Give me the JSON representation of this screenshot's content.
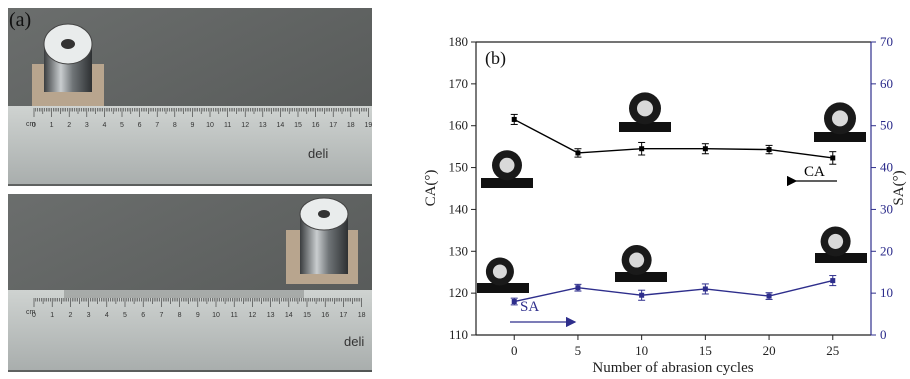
{
  "panel_a_label": "(a)",
  "ruler_brand": "deli",
  "ruler_unit": "cm",
  "ruler_top_numbers": [
    "0",
    "1",
    "2",
    "3",
    "4",
    "5",
    "6",
    "7",
    "8",
    "9",
    "10",
    "11",
    "12",
    "13",
    "14",
    "15",
    "16",
    "17",
    "18",
    "19"
  ],
  "ruler_bottom_numbers": [
    "0",
    "1",
    "2",
    "3",
    "4",
    "5",
    "6",
    "7",
    "8",
    "9",
    "10",
    "11",
    "12",
    "13",
    "14",
    "15",
    "16",
    "17",
    "18"
  ],
  "colors": {
    "ca_line": "#000000",
    "sa_line": "#2e2e8c",
    "background_photo": "#5c5f5e"
  },
  "chart_data": {
    "type": "line",
    "panel_label": "(b)",
    "xlabel": "Number of abrasion cycles",
    "ylabel_left": "CA(°)",
    "ylabel_right": "SA(°)",
    "x": [
      0,
      5,
      10,
      15,
      20,
      25
    ],
    "x_ticks": [
      "0",
      "5",
      "10",
      "15",
      "20",
      "25"
    ],
    "y_left_ticks": [
      "110",
      "120",
      "130",
      "140",
      "150",
      "160",
      "170",
      "180"
    ],
    "y_right_ticks": [
      "0",
      "10",
      "20",
      "30",
      "40",
      "50",
      "60",
      "70"
    ],
    "ylim_left": [
      110,
      180
    ],
    "ylim_right": [
      0,
      70
    ],
    "xlim": [
      -3,
      28
    ],
    "series": [
      {
        "name": "CA",
        "axis": "left",
        "values": [
          161.5,
          153.5,
          154.5,
          154.5,
          154.3,
          152.3
        ],
        "errors": [
          1.2,
          1.0,
          1.5,
          1.2,
          1.0,
          1.5
        ]
      },
      {
        "name": "SA",
        "axis": "right",
        "values": [
          8.0,
          11.3,
          9.5,
          11.0,
          9.3,
          13.0
        ],
        "errors": [
          0.8,
          0.8,
          1.2,
          1.2,
          0.8,
          1.2
        ]
      }
    ],
    "legend": [
      {
        "name": "CA",
        "arrow": "left",
        "placement": "right"
      },
      {
        "name": "SA",
        "arrow": "right",
        "placement": "left"
      }
    ],
    "grid": false
  }
}
